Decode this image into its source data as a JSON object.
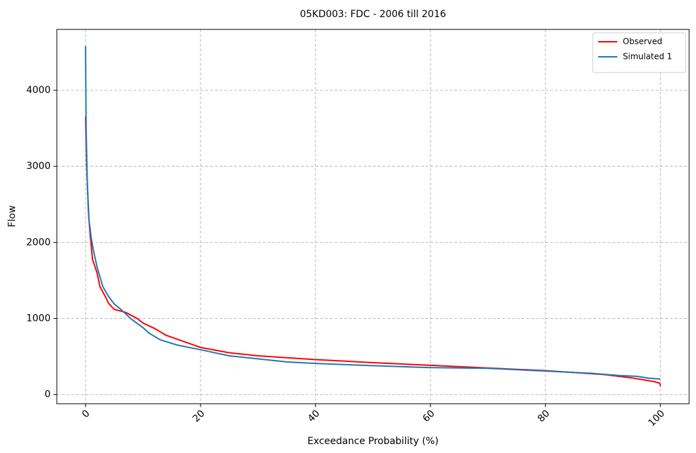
{
  "chart_data": {
    "type": "line",
    "title": "05KD003: FDC - 2006 till 2016",
    "x_label": "Exceedance Probability (%)",
    "y_label": "Flow",
    "xlim": [
      -5,
      105
    ],
    "ylim": [
      -120,
      4800
    ],
    "xticks": [
      0,
      20,
      40,
      60,
      80,
      100
    ],
    "yticks": [
      0,
      1000,
      2000,
      3000,
      4000
    ],
    "grid": true,
    "legend": "upper right",
    "series": [
      {
        "name": "Observed",
        "color": "#ff0000",
        "x": [
          0,
          0.2,
          0.5,
          0.8,
          1,
          1.2,
          2,
          2.5,
          3.5,
          4,
          5,
          7,
          9,
          10,
          12,
          14,
          17,
          20,
          25,
          30,
          40,
          50,
          60,
          70,
          80,
          90,
          95,
          99,
          99.9,
          100
        ],
        "values": [
          3650,
          3000,
          2400,
          2100,
          1950,
          1780,
          1600,
          1420,
          1280,
          1200,
          1120,
          1080,
          1000,
          940,
          870,
          780,
          700,
          620,
          550,
          510,
          460,
          420,
          385,
          350,
          315,
          265,
          220,
          170,
          150,
          110
        ]
      },
      {
        "name": "Simulated 1",
        "color": "#1f77b4",
        "x": [
          0,
          0.1,
          0.3,
          0.6,
          1,
          1.5,
          2,
          3,
          4,
          5,
          6,
          7,
          8,
          10,
          11,
          13,
          16,
          20,
          25,
          30,
          35,
          40,
          50,
          60,
          70,
          80,
          88,
          93,
          96,
          98,
          100
        ],
        "values": [
          4580,
          3500,
          2800,
          2300,
          2050,
          1850,
          1680,
          1420,
          1290,
          1190,
          1130,
          1060,
          990,
          880,
          810,
          720,
          650,
          590,
          510,
          470,
          430,
          410,
          380,
          355,
          345,
          310,
          280,
          250,
          240,
          215,
          205
        ]
      }
    ]
  }
}
